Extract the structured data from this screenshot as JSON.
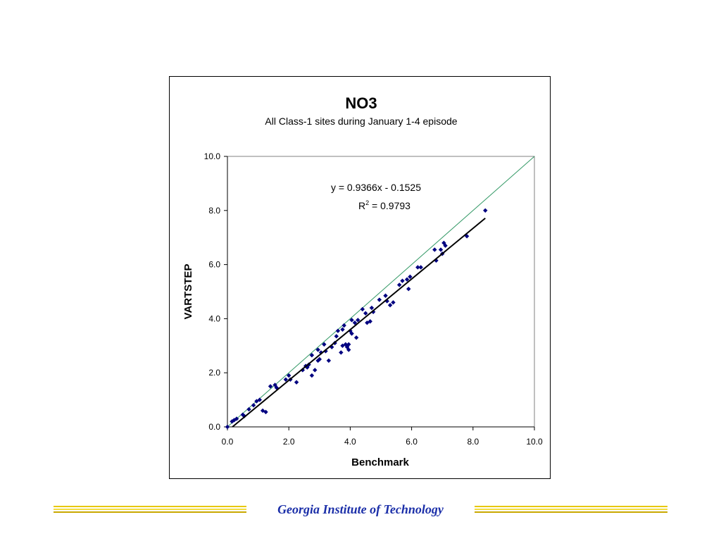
{
  "chart_data": {
    "type": "scatter",
    "title": "NO3",
    "subtitle": "All Class-1 sites during January 1-4 episode",
    "xlabel": "Benchmark",
    "ylabel": "VARTSTEP",
    "xlim": [
      0,
      10
    ],
    "ylim": [
      0,
      10
    ],
    "xticks": [
      "0.0",
      "2.0",
      "4.0",
      "6.0",
      "8.0",
      "10.0"
    ],
    "yticks": [
      "0.0",
      "2.0",
      "4.0",
      "6.0",
      "8.0",
      "10.0"
    ],
    "grid": false,
    "legend": "none",
    "marker_color": "#000080",
    "trendline": {
      "equation": "y = 0.9366x - 0.1525",
      "r2_prefix": "R",
      "r2_sup": "2",
      "r2_suffix": " = 0.9793",
      "slope": 0.9366,
      "intercept": -0.1525,
      "x_range": [
        0.0,
        8.4
      ],
      "color": "#000000"
    },
    "reference_line": {
      "description": "1:1 line",
      "color": "#339966"
    },
    "points": [
      [
        0.0,
        0.0
      ],
      [
        0.15,
        0.2
      ],
      [
        0.22,
        0.25
      ],
      [
        0.3,
        0.3
      ],
      [
        0.5,
        0.45
      ],
      [
        0.55,
        0.4
      ],
      [
        0.7,
        0.65
      ],
      [
        0.85,
        0.8
      ],
      [
        0.95,
        0.95
      ],
      [
        1.05,
        1.0
      ],
      [
        1.15,
        0.6
      ],
      [
        1.25,
        0.55
      ],
      [
        1.4,
        1.5
      ],
      [
        1.55,
        1.55
      ],
      [
        1.6,
        1.45
      ],
      [
        1.9,
        1.75
      ],
      [
        2.0,
        1.9
      ],
      [
        2.05,
        1.75
      ],
      [
        2.25,
        1.65
      ],
      [
        2.45,
        2.1
      ],
      [
        2.55,
        2.25
      ],
      [
        2.6,
        2.2
      ],
      [
        2.65,
        2.3
      ],
      [
        2.75,
        2.65
      ],
      [
        2.75,
        1.9
      ],
      [
        2.85,
        2.1
      ],
      [
        2.95,
        2.85
      ],
      [
        2.95,
        2.45
      ],
      [
        3.0,
        2.5
      ],
      [
        3.05,
        2.75
      ],
      [
        3.15,
        3.05
      ],
      [
        3.2,
        2.8
      ],
      [
        3.3,
        2.45
      ],
      [
        3.4,
        2.95
      ],
      [
        3.5,
        3.1
      ],
      [
        3.55,
        3.35
      ],
      [
        3.6,
        3.55
      ],
      [
        3.7,
        2.75
      ],
      [
        3.75,
        3.0
      ],
      [
        3.75,
        3.6
      ],
      [
        3.8,
        3.75
      ],
      [
        3.85,
        3.05
      ],
      [
        3.9,
        2.95
      ],
      [
        3.95,
        3.05
      ],
      [
        3.95,
        2.85
      ],
      [
        4.0,
        3.55
      ],
      [
        4.05,
        3.45
      ],
      [
        4.05,
        3.95
      ],
      [
        4.15,
        3.85
      ],
      [
        4.2,
        3.3
      ],
      [
        4.25,
        3.95
      ],
      [
        4.4,
        4.35
      ],
      [
        4.5,
        4.2
      ],
      [
        4.55,
        3.85
      ],
      [
        4.65,
        3.9
      ],
      [
        4.7,
        4.4
      ],
      [
        4.75,
        4.25
      ],
      [
        4.95,
        4.7
      ],
      [
        5.15,
        4.85
      ],
      [
        5.2,
        4.65
      ],
      [
        5.3,
        4.5
      ],
      [
        5.4,
        4.6
      ],
      [
        5.6,
        5.25
      ],
      [
        5.7,
        5.4
      ],
      [
        5.85,
        5.45
      ],
      [
        5.9,
        5.1
      ],
      [
        5.95,
        5.55
      ],
      [
        6.2,
        5.9
      ],
      [
        6.3,
        5.9
      ],
      [
        6.75,
        6.55
      ],
      [
        6.8,
        6.15
      ],
      [
        6.95,
        6.55
      ],
      [
        7.0,
        6.4
      ],
      [
        7.05,
        6.8
      ],
      [
        7.1,
        6.7
      ],
      [
        7.8,
        7.05
      ],
      [
        8.4,
        8.0
      ]
    ]
  },
  "footer": {
    "text": "Georgia Institute of Technology",
    "rule_color": "#e8c800",
    "text_color": "#1a2ea8"
  }
}
